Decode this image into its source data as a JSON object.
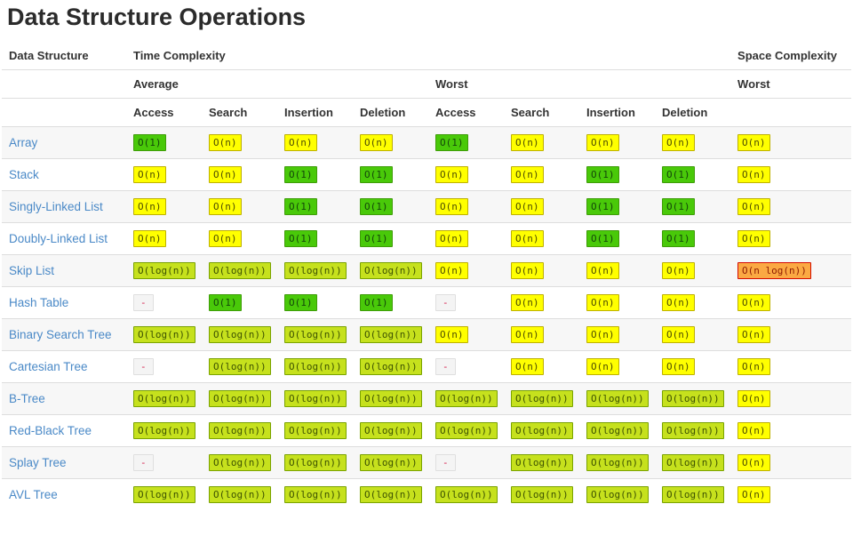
{
  "page": {
    "title": "Data Structure Operations"
  },
  "status_colors": {
    "green": "#49c909",
    "yellowgreen": "#c6e11d",
    "yellow": "#ffff00",
    "orange": "#fba943",
    "na_background": "#f4f4f4",
    "na_text": "#d6204e",
    "link_blue": "#4a89c7",
    "row_stripe": "#f7f7f7",
    "divider": "#dddddd"
  },
  "table": {
    "group_headers": {
      "data_structure": "Data Structure",
      "time_complexity": "Time Complexity",
      "space_complexity": "Space Complexity"
    },
    "sub_headers": {
      "average": "Average",
      "worst": "Worst",
      "space_worst": "Worst"
    },
    "op_headers": [
      "Access",
      "Search",
      "Insertion",
      "Deletion",
      "Access",
      "Search",
      "Insertion",
      "Deletion"
    ],
    "rows": [
      {
        "name": "Array",
        "cells": [
          {
            "text": "O(1)",
            "level": "green"
          },
          {
            "text": "O(n)",
            "level": "yellow"
          },
          {
            "text": "O(n)",
            "level": "yellow"
          },
          {
            "text": "O(n)",
            "level": "yellow"
          },
          {
            "text": "O(1)",
            "level": "green"
          },
          {
            "text": "O(n)",
            "level": "yellow"
          },
          {
            "text": "O(n)",
            "level": "yellow"
          },
          {
            "text": "O(n)",
            "level": "yellow"
          },
          {
            "text": "O(n)",
            "level": "yellow"
          }
        ]
      },
      {
        "name": "Stack",
        "cells": [
          {
            "text": "O(n)",
            "level": "yellow"
          },
          {
            "text": "O(n)",
            "level": "yellow"
          },
          {
            "text": "O(1)",
            "level": "green"
          },
          {
            "text": "O(1)",
            "level": "green"
          },
          {
            "text": "O(n)",
            "level": "yellow"
          },
          {
            "text": "O(n)",
            "level": "yellow"
          },
          {
            "text": "O(1)",
            "level": "green"
          },
          {
            "text": "O(1)",
            "level": "green"
          },
          {
            "text": "O(n)",
            "level": "yellow"
          }
        ]
      },
      {
        "name": "Singly-Linked List",
        "cells": [
          {
            "text": "O(n)",
            "level": "yellow"
          },
          {
            "text": "O(n)",
            "level": "yellow"
          },
          {
            "text": "O(1)",
            "level": "green"
          },
          {
            "text": "O(1)",
            "level": "green"
          },
          {
            "text": "O(n)",
            "level": "yellow"
          },
          {
            "text": "O(n)",
            "level": "yellow"
          },
          {
            "text": "O(1)",
            "level": "green"
          },
          {
            "text": "O(1)",
            "level": "green"
          },
          {
            "text": "O(n)",
            "level": "yellow"
          }
        ]
      },
      {
        "name": "Doubly-Linked List",
        "cells": [
          {
            "text": "O(n)",
            "level": "yellow"
          },
          {
            "text": "O(n)",
            "level": "yellow"
          },
          {
            "text": "O(1)",
            "level": "green"
          },
          {
            "text": "O(1)",
            "level": "green"
          },
          {
            "text": "O(n)",
            "level": "yellow"
          },
          {
            "text": "O(n)",
            "level": "yellow"
          },
          {
            "text": "O(1)",
            "level": "green"
          },
          {
            "text": "O(1)",
            "level": "green"
          },
          {
            "text": "O(n)",
            "level": "yellow"
          }
        ]
      },
      {
        "name": "Skip List",
        "cells": [
          {
            "text": "O(log(n))",
            "level": "yellowgreen"
          },
          {
            "text": "O(log(n))",
            "level": "yellowgreen"
          },
          {
            "text": "O(log(n))",
            "level": "yellowgreen"
          },
          {
            "text": "O(log(n))",
            "level": "yellowgreen"
          },
          {
            "text": "O(n)",
            "level": "yellow"
          },
          {
            "text": "O(n)",
            "level": "yellow"
          },
          {
            "text": "O(n)",
            "level": "yellow"
          },
          {
            "text": "O(n)",
            "level": "yellow"
          },
          {
            "text": "O(n log(n))",
            "level": "orange"
          }
        ]
      },
      {
        "name": "Hash Table",
        "cells": [
          {
            "text": "-",
            "level": "na"
          },
          {
            "text": "O(1)",
            "level": "green"
          },
          {
            "text": "O(1)",
            "level": "green"
          },
          {
            "text": "O(1)",
            "level": "green"
          },
          {
            "text": "-",
            "level": "na"
          },
          {
            "text": "O(n)",
            "level": "yellow"
          },
          {
            "text": "O(n)",
            "level": "yellow"
          },
          {
            "text": "O(n)",
            "level": "yellow"
          },
          {
            "text": "O(n)",
            "level": "yellow"
          }
        ]
      },
      {
        "name": "Binary Search Tree",
        "cells": [
          {
            "text": "O(log(n))",
            "level": "yellowgreen"
          },
          {
            "text": "O(log(n))",
            "level": "yellowgreen"
          },
          {
            "text": "O(log(n))",
            "level": "yellowgreen"
          },
          {
            "text": "O(log(n))",
            "level": "yellowgreen"
          },
          {
            "text": "O(n)",
            "level": "yellow"
          },
          {
            "text": "O(n)",
            "level": "yellow"
          },
          {
            "text": "O(n)",
            "level": "yellow"
          },
          {
            "text": "O(n)",
            "level": "yellow"
          },
          {
            "text": "O(n)",
            "level": "yellow"
          }
        ]
      },
      {
        "name": "Cartesian Tree",
        "cells": [
          {
            "text": "-",
            "level": "na"
          },
          {
            "text": "O(log(n))",
            "level": "yellowgreen"
          },
          {
            "text": "O(log(n))",
            "level": "yellowgreen"
          },
          {
            "text": "O(log(n))",
            "level": "yellowgreen"
          },
          {
            "text": "-",
            "level": "na"
          },
          {
            "text": "O(n)",
            "level": "yellow"
          },
          {
            "text": "O(n)",
            "level": "yellow"
          },
          {
            "text": "O(n)",
            "level": "yellow"
          },
          {
            "text": "O(n)",
            "level": "yellow"
          }
        ]
      },
      {
        "name": "B-Tree",
        "cells": [
          {
            "text": "O(log(n))",
            "level": "yellowgreen"
          },
          {
            "text": "O(log(n))",
            "level": "yellowgreen"
          },
          {
            "text": "O(log(n))",
            "level": "yellowgreen"
          },
          {
            "text": "O(log(n))",
            "level": "yellowgreen"
          },
          {
            "text": "O(log(n))",
            "level": "yellowgreen"
          },
          {
            "text": "O(log(n))",
            "level": "yellowgreen"
          },
          {
            "text": "O(log(n))",
            "level": "yellowgreen"
          },
          {
            "text": "O(log(n))",
            "level": "yellowgreen"
          },
          {
            "text": "O(n)",
            "level": "yellow"
          }
        ]
      },
      {
        "name": "Red-Black Tree",
        "cells": [
          {
            "text": "O(log(n))",
            "level": "yellowgreen"
          },
          {
            "text": "O(log(n))",
            "level": "yellowgreen"
          },
          {
            "text": "O(log(n))",
            "level": "yellowgreen"
          },
          {
            "text": "O(log(n))",
            "level": "yellowgreen"
          },
          {
            "text": "O(log(n))",
            "level": "yellowgreen"
          },
          {
            "text": "O(log(n))",
            "level": "yellowgreen"
          },
          {
            "text": "O(log(n))",
            "level": "yellowgreen"
          },
          {
            "text": "O(log(n))",
            "level": "yellowgreen"
          },
          {
            "text": "O(n)",
            "level": "yellow"
          }
        ]
      },
      {
        "name": "Splay Tree",
        "cells": [
          {
            "text": "-",
            "level": "na"
          },
          {
            "text": "O(log(n))",
            "level": "yellowgreen"
          },
          {
            "text": "O(log(n))",
            "level": "yellowgreen"
          },
          {
            "text": "O(log(n))",
            "level": "yellowgreen"
          },
          {
            "text": "-",
            "level": "na"
          },
          {
            "text": "O(log(n))",
            "level": "yellowgreen"
          },
          {
            "text": "O(log(n))",
            "level": "yellowgreen"
          },
          {
            "text": "O(log(n))",
            "level": "yellowgreen"
          },
          {
            "text": "O(n)",
            "level": "yellow"
          }
        ]
      },
      {
        "name": "AVL Tree",
        "cells": [
          {
            "text": "O(log(n))",
            "level": "yellowgreen"
          },
          {
            "text": "O(log(n))",
            "level": "yellowgreen"
          },
          {
            "text": "O(log(n))",
            "level": "yellowgreen"
          },
          {
            "text": "O(log(n))",
            "level": "yellowgreen"
          },
          {
            "text": "O(log(n))",
            "level": "yellowgreen"
          },
          {
            "text": "O(log(n))",
            "level": "yellowgreen"
          },
          {
            "text": "O(log(n))",
            "level": "yellowgreen"
          },
          {
            "text": "O(log(n))",
            "level": "yellowgreen"
          },
          {
            "text": "O(n)",
            "level": "yellow"
          }
        ]
      }
    ]
  }
}
